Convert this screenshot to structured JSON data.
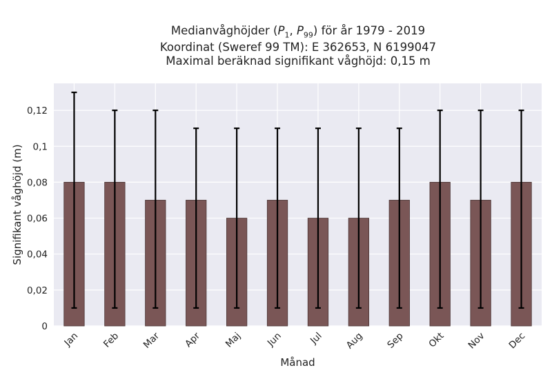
{
  "chart_data": {
    "type": "bar",
    "title_lines": [
      "Medianvåghöjder (P1, P99) för år 1979 - 2019",
      "Koordinat (Sweref 99 TM): E 362653, N 6199047",
      "Maximal beräknad signifikant våghöjd: 0,15 m"
    ],
    "xlabel": "Månad",
    "ylabel": "Signifikant våghöjd (m)",
    "categories": [
      "Jan",
      "Feb",
      "Mar",
      "Apr",
      "Maj",
      "Jun",
      "Jul",
      "Aug",
      "Sep",
      "Okt",
      "Nov",
      "Dec"
    ],
    "values": [
      0.08,
      0.08,
      0.07,
      0.07,
      0.06,
      0.07,
      0.06,
      0.06,
      0.07,
      0.08,
      0.07,
      0.08
    ],
    "p1": [
      0.01,
      0.01,
      0.01,
      0.01,
      0.01,
      0.01,
      0.01,
      0.01,
      0.01,
      0.01,
      0.01,
      0.01
    ],
    "p99": [
      0.13,
      0.12,
      0.12,
      0.11,
      0.11,
      0.11,
      0.11,
      0.11,
      0.11,
      0.12,
      0.12,
      0.12
    ],
    "ylim": [
      0,
      0.135
    ],
    "yticks": [
      0,
      0.02,
      0.04,
      0.06,
      0.08,
      0.1,
      0.12
    ],
    "ytick_labels": [
      "0",
      "0,02",
      "0,04",
      "0,06",
      "0,08",
      "0,1",
      "0,12"
    ],
    "grid": true,
    "colors": {
      "bar": "#7a5656",
      "bar_edge": "#4a3535",
      "errorbar": "#000000",
      "plot_background": "#eaeaf2",
      "grid": "#ffffff"
    }
  }
}
